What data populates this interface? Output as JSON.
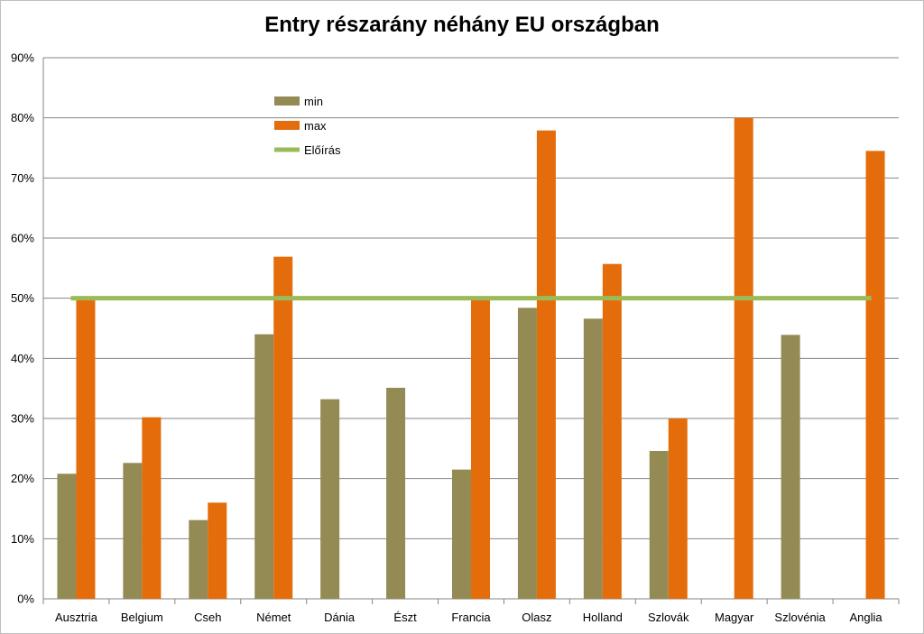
{
  "chart_data": {
    "type": "bar",
    "title": "Entry részarány néhány EU országban",
    "xlabel": "",
    "ylabel": "",
    "ylim": [
      0,
      90
    ],
    "y_tick_labels": [
      "0%",
      "10%",
      "20%",
      "30%",
      "40%",
      "50%",
      "60%",
      "70%",
      "80%",
      "90%"
    ],
    "grid": true,
    "legend_position": "top-left",
    "categories": [
      "Ausztria",
      "Belgium",
      "Cseh",
      "Német",
      "Dánia",
      "Észt",
      "Francia",
      "Olasz",
      "Holland",
      "Szlovák",
      "Magyar",
      "Szlovénia",
      "Anglia"
    ],
    "series": [
      {
        "name": "min",
        "color": "#948a54",
        "values": [
          20.8,
          22.6,
          13.1,
          44.0,
          33.2,
          35.1,
          21.5,
          48.4,
          46.6,
          24.6,
          null,
          43.9,
          null
        ]
      },
      {
        "name": "max",
        "color": "#e46c0a",
        "values": [
          50.0,
          30.2,
          16.0,
          56.9,
          null,
          null,
          50.0,
          77.9,
          55.7,
          30.0,
          80.0,
          null,
          74.5
        ]
      }
    ],
    "reference_line": {
      "name": "Előírás",
      "value": 50,
      "color": "#9bbb59"
    }
  }
}
